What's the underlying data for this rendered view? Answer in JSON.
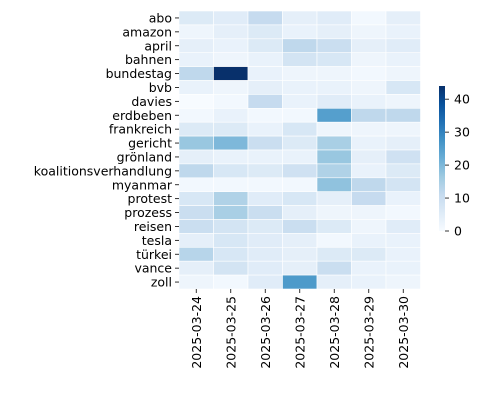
{
  "chart_data": {
    "type": "heatmap",
    "title": "",
    "xlabel": "",
    "ylabel": "",
    "rows": [
      "abo",
      "amazon",
      "april",
      "bahnen",
      "bundestag",
      "bvb",
      "davies",
      "erdbeben",
      "frankreich",
      "gericht",
      "grönland",
      "koalitionsverhandlung",
      "myanmar",
      "protest",
      "prozess",
      "reisen",
      "tesla",
      "türkei",
      "vance",
      "zoll"
    ],
    "columns": [
      "2025-03-24",
      "2025-03-25",
      "2025-03-26",
      "2025-03-27",
      "2025-03-28",
      "2025-03-29",
      "2025-03-30"
    ],
    "values": [
      [
        6,
        5,
        11,
        4,
        5,
        1,
        4
      ],
      [
        2,
        4,
        6,
        3,
        4,
        2,
        3
      ],
      [
        4,
        3,
        6,
        12,
        10,
        4,
        5
      ],
      [
        3,
        2,
        3,
        8,
        7,
        2,
        3
      ],
      [
        12,
        44,
        3,
        2,
        2,
        1,
        2
      ],
      [
        3,
        2,
        4,
        3,
        3,
        2,
        7
      ],
      [
        0,
        1,
        11,
        3,
        5,
        3,
        2
      ],
      [
        1,
        3,
        1,
        1,
        25,
        12,
        12
      ],
      [
        6,
        6,
        3,
        7,
        2,
        2,
        2
      ],
      [
        17,
        20,
        10,
        6,
        15,
        3,
        4
      ],
      [
        4,
        3,
        3,
        3,
        17,
        4,
        9
      ],
      [
        12,
        7,
        6,
        9,
        14,
        3,
        6
      ],
      [
        1,
        1,
        1,
        1,
        18,
        12,
        8
      ],
      [
        7,
        14,
        5,
        7,
        4,
        11,
        3
      ],
      [
        10,
        15,
        10,
        4,
        2,
        2,
        1
      ],
      [
        10,
        8,
        6,
        10,
        6,
        2,
        5
      ],
      [
        4,
        7,
        5,
        4,
        1,
        3,
        3
      ],
      [
        13,
        7,
        5,
        4,
        6,
        6,
        3
      ],
      [
        4,
        8,
        5,
        4,
        10,
        3,
        3
      ],
      [
        2,
        1,
        5,
        26,
        4,
        3,
        2
      ]
    ],
    "colorbar": {
      "min": 0,
      "max": 44,
      "ticks": [
        0,
        10,
        20,
        30,
        40
      ],
      "colormap": "Blues",
      "stops": [
        "#f7fbff",
        "#deebf7",
        "#c6dbef",
        "#9ecae1",
        "#6baed6",
        "#4292c6",
        "#2171b5",
        "#08519c",
        "#08306b"
      ]
    },
    "cell_border_color": "#ffffff",
    "grid": false,
    "legend": "colorbar right"
  }
}
